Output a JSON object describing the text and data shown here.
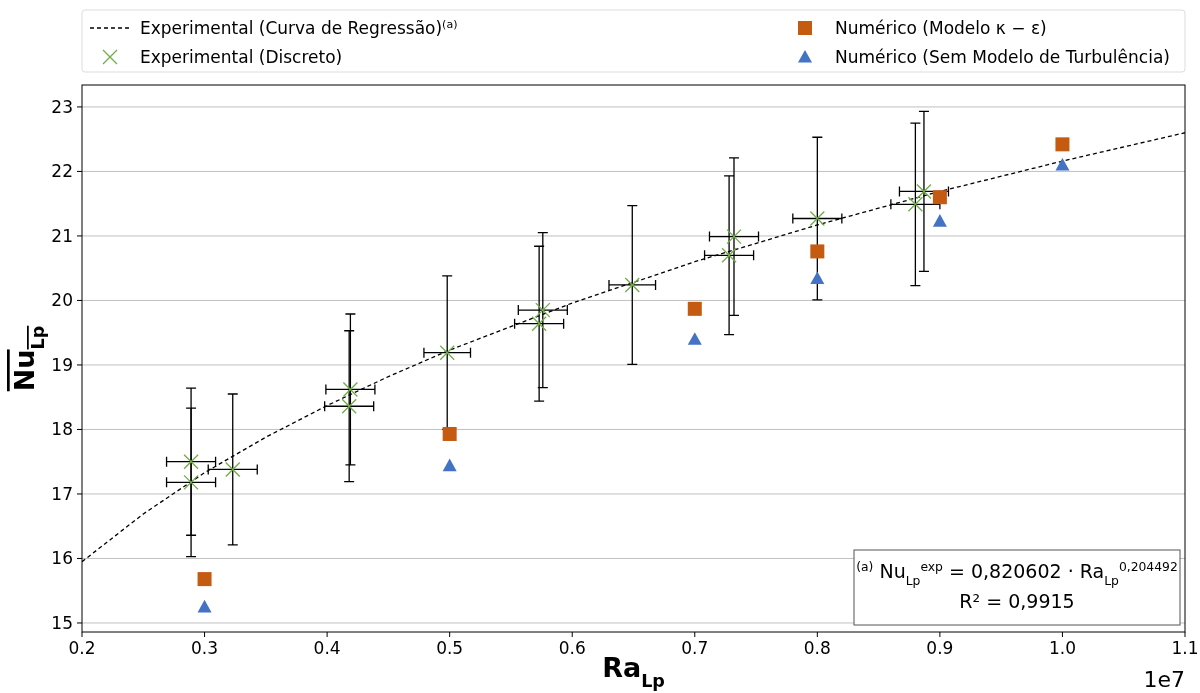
{
  "chart_data": {
    "type": "scatter",
    "xlabel": "Ra$_{Lp}$",
    "ylabel": "Nu$_{Lp}$",
    "xlim": [
      0.2,
      1.1
    ],
    "ylim": [
      14.86,
      23.34
    ],
    "xticks": [
      0.2,
      0.3,
      0.4,
      0.5,
      0.6,
      0.7,
      0.8,
      0.9,
      {
        "value": 1,
        "label": "1.0"
      },
      1.1
    ],
    "yticks": [
      15,
      16,
      17,
      18,
      19,
      20,
      21,
      22,
      23
    ],
    "grid": "y",
    "legend": "top",
    "annotations": [
      "1e7",
      "$^{(a)}$ Nu$_{Lp}$$^{exp}$ = 0,820602 · Ra$_{Lp}$$^{0,204492}$",
      "R² = 0,9915"
    ],
    "series": [
      {
        "name": "Experimental (Curva de Regressão)$^{(a)}$",
        "type": "line",
        "color": "#000000",
        "line_style": "dashed",
        "marker": "none",
        "x": [
          0.2,
          0.25,
          0.3,
          0.35,
          0.4,
          0.45,
          0.5,
          0.6,
          0.7,
          0.8,
          0.9,
          1.0,
          1.1
        ],
        "values": [
          15.95,
          16.69,
          17.33,
          17.88,
          18.37,
          18.82,
          19.23,
          19.96,
          20.6,
          21.17,
          21.69,
          22.16,
          22.6
        ]
      },
      {
        "name": "Experimental (Discreto)",
        "type": "scatter",
        "color": "#70ad47",
        "marker": "cross",
        "x": [
          0.289,
          0.289,
          0.323,
          0.419,
          0.418,
          0.498,
          0.576,
          0.573,
          0.649,
          0.732,
          0.728,
          0.8,
          0.887,
          0.88
        ],
        "values": [
          17.5,
          17.18,
          17.38,
          18.62,
          18.36,
          19.19,
          19.85,
          19.64,
          20.24,
          20.99,
          20.7,
          21.27,
          21.69,
          21.49
        ],
        "errors": [
          1.14,
          1.15,
          1.17,
          1.17,
          1.17,
          1.19,
          1.2,
          1.2,
          1.23,
          1.22,
          1.23,
          1.26,
          1.24,
          1.26
        ],
        "xerrors": [
          0.02,
          0.02,
          0.02,
          0.02,
          0.02,
          0.019,
          0.02,
          0.02,
          0.019,
          0.02,
          0.02,
          0.02,
          0.02,
          0.02
        ]
      },
      {
        "name": "Numérico (Modelo κ − ε)",
        "type": "scatter",
        "color": "#c55a11",
        "marker": "square",
        "x": [
          0.3,
          0.5,
          0.7,
          0.8,
          0.9,
          1.0
        ],
        "values": [
          15.68,
          17.93,
          19.87,
          20.76,
          21.6,
          22.42
        ]
      },
      {
        "name": "Numérico (Sem Modelo de Turbulência)",
        "type": "scatter",
        "color": "#4472c4",
        "marker": "triangle",
        "x": [
          0.3,
          0.5,
          0.7,
          0.8,
          0.9,
          1.0
        ],
        "values": [
          15.25,
          17.44,
          19.4,
          20.34,
          21.23,
          22.1
        ]
      }
    ]
  }
}
